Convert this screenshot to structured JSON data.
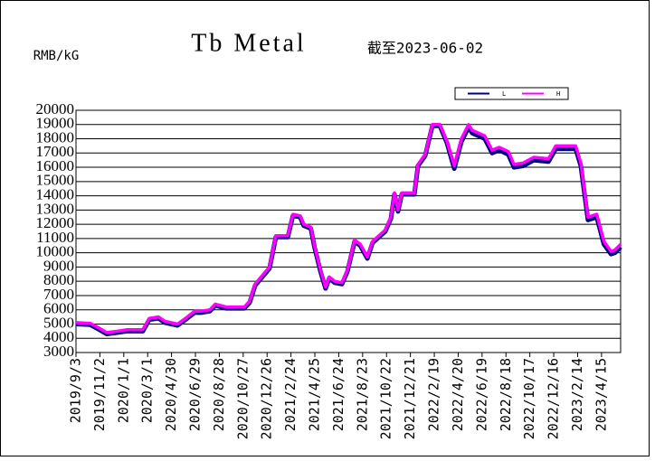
{
  "chart_data": {
    "type": "line",
    "title": "Tb Metal",
    "subtitle": "截至2023-06-02",
    "y_label": "RMB/kG",
    "x": [
      "2019/9/3",
      "2019/10/9",
      "2019/11/1",
      "2019/11/19",
      "2019/12/17",
      "2020/1/8",
      "2020/2/18",
      "2020/3/5",
      "2020/3/28",
      "2020/4/13",
      "2020/5/15",
      "2020/6/4",
      "2020/6/27",
      "2020/7/13",
      "2020/8/4",
      "2020/8/18",
      "2020/9/14",
      "2020/10/30",
      "2020/11/12",
      "2020/11/26",
      "2020/12/14",
      "2021/1/1",
      "2021/1/17",
      "2021/2/16",
      "2021/3/1",
      "2021/3/19",
      "2021/3/28",
      "2021/4/15",
      "2021/4/24",
      "2021/5/9",
      "2021/5/22",
      "2021/5/31",
      "2021/6/14",
      "2021/7/2",
      "2021/7/16",
      "2021/8/3",
      "2021/8/17",
      "2021/9/4",
      "2021/9/17",
      "2021/10/19",
      "2021/11/2",
      "2021/11/11",
      "2021/11/20",
      "2021/11/29",
      "2021/12/31",
      "2022/1/9",
      "2022/1/27",
      "2022/2/14",
      "2022/3/5",
      "2022/3/23",
      "2022/4/10",
      "2022/4/28",
      "2022/5/16",
      "2022/5/25",
      "2022/6/26",
      "2022/7/14",
      "2022/8/1",
      "2022/8/24",
      "2022/9/7",
      "2022/9/30",
      "2022/10/27",
      "2022/12/3",
      "2022/12/21",
      "2023/2/9",
      "2023/2/22",
      "2023/3/12",
      "2023/4/3",
      "2023/4/21",
      "2023/5/9",
      "2023/5/19",
      "2023/6/2"
    ],
    "series": [
      {
        "name": "L",
        "color": "#000080",
        "values": [
          5000,
          4950,
          4600,
          4300,
          4400,
          4500,
          4500,
          5300,
          5400,
          5100,
          4900,
          5300,
          5800,
          5800,
          5900,
          6300,
          6100,
          6100,
          6500,
          7700,
          8300,
          8900,
          11100,
          11100,
          12600,
          12500,
          11900,
          11700,
          10400,
          8700,
          7500,
          8200,
          7900,
          7800,
          8700,
          10800,
          10500,
          9600,
          10700,
          11500,
          12400,
          14100,
          12900,
          14100,
          14100,
          16100,
          16800,
          18900,
          18900,
          17700,
          15900,
          17800,
          18800,
          18400,
          18000,
          17000,
          17200,
          16900,
          16000,
          16100,
          16500,
          16400,
          17300,
          17300,
          16100,
          12300,
          12500,
          10600,
          9900,
          10000,
          10400
        ]
      },
      {
        "name": "H",
        "color": "#ff00ff",
        "values": [
          5100,
          5050,
          4700,
          4400,
          4500,
          4600,
          4600,
          5400,
          5500,
          5200,
          5000,
          5400,
          5900,
          5900,
          6000,
          6400,
          6200,
          6200,
          6600,
          7800,
          8400,
          9000,
          11200,
          11200,
          12700,
          12600,
          12000,
          11800,
          10500,
          8800,
          7600,
          8300,
          8000,
          7900,
          8800,
          10900,
          10600,
          9700,
          10800,
          11600,
          12500,
          14200,
          13000,
          14200,
          14200,
          16200,
          16900,
          19000,
          19000,
          17800,
          16100,
          18000,
          19000,
          18600,
          18200,
          17200,
          17400,
          17100,
          16200,
          16300,
          16700,
          16600,
          17500,
          17500,
          16300,
          12500,
          12700,
          10800,
          10100,
          10200,
          10600
        ]
      }
    ],
    "xlim": [
      "2019/9/3",
      "2023/6/2"
    ],
    "xticks": [
      "2019/9/3",
      "2019/11/2",
      "2020/1/1",
      "2020/3/1",
      "2020/4/30",
      "2020/6/29",
      "2020/8/28",
      "2020/10/27",
      "2020/12/26",
      "2021/2/24",
      "2021/4/25",
      "2021/6/24",
      "2021/8/23",
      "2021/10/22",
      "2021/12/21",
      "2022/2/19",
      "2022/4/20",
      "2022/6/19",
      "2022/8/18",
      "2022/10/17",
      "2022/12/16",
      "2023/2/14",
      "2023/4/15"
    ],
    "ylim": [
      3000,
      20000
    ],
    "yticks": [
      3000,
      4000,
      5000,
      6000,
      7000,
      8000,
      9000,
      10000,
      11000,
      12000,
      13000,
      14000,
      15000,
      16000,
      17000,
      18000,
      19000,
      20000
    ],
    "grid": true
  }
}
